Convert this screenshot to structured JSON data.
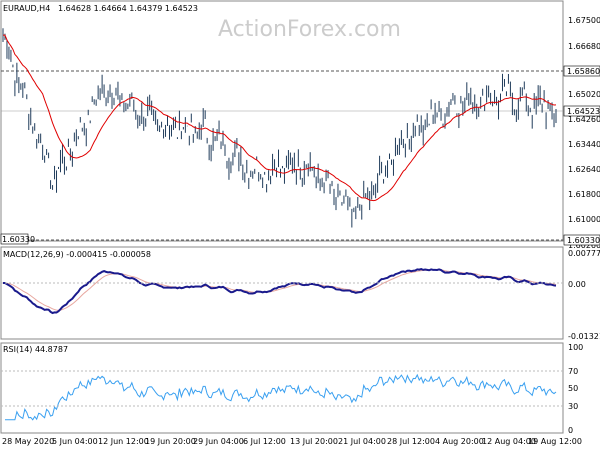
{
  "header": {
    "symbol": "EURAUD,H4",
    "ohlc": "1.64628 1.64664 1.64379 1.64523"
  },
  "watermark": "ActionForex.com",
  "price_axis": {
    "ticks": [
      "1.67500",
      "1.66680",
      "1.65020",
      "1.64260",
      "1.63440",
      "1.62640",
      "1.61800",
      "1.61000",
      "1.60260"
    ],
    "marker_high": "1.65860",
    "marker_current": "1.64523",
    "marker_low": "1.60330",
    "low_left_tag": "1.60330"
  },
  "macd": {
    "label": "MACD(12,26,9) -0.000415 -0.000058",
    "ticks": [
      "0.007778",
      "0.00",
      "-0.01321"
    ]
  },
  "rsi": {
    "label": "RSI(14) 44.8787",
    "ticks": [
      "100",
      "70",
      "50",
      "30",
      "0"
    ]
  },
  "time_axis": [
    "28 May 2020",
    "5 Jun 04:00",
    "12 Jun 12:00",
    "19 Jun 20:00",
    "29 Jun 04:00",
    "6 Jul 12:00",
    "13 Jul 20:00",
    "21 Jul 04:00",
    "28 Jul 12:00",
    "4 Aug 20:00",
    "12 Aug 04:00",
    "19 Aug 12:00"
  ],
  "colors": {
    "candle": "#1f3b5a",
    "ma": "#e00000",
    "macd": "#1a1a8c",
    "signal": "#e8a8a0",
    "rsi": "#3aa0f0",
    "grid": "#e6e6e6"
  },
  "chart_data": {
    "type": "line",
    "title": "EURAUD,H4",
    "series": [
      {
        "name": "EURAUD,H4",
        "x_dates": [
          "28 May",
          "5 Jun",
          "12 Jun",
          "19 Jun",
          "29 Jun",
          "6 Jul",
          "13 Jul",
          "21 Jul",
          "28 Jul",
          "4 Aug",
          "12 Aug",
          "19 Aug"
        ],
        "values": [
          1.67,
          1.622,
          1.653,
          1.641,
          1.638,
          1.625,
          1.628,
          1.61,
          1.636,
          1.648,
          1.65,
          1.645
        ]
      }
    ],
    "ylim": [
      1.6026,
      1.6775
    ],
    "annotations": [
      "1.65860",
      "1.64523",
      "1.60330"
    ]
  }
}
